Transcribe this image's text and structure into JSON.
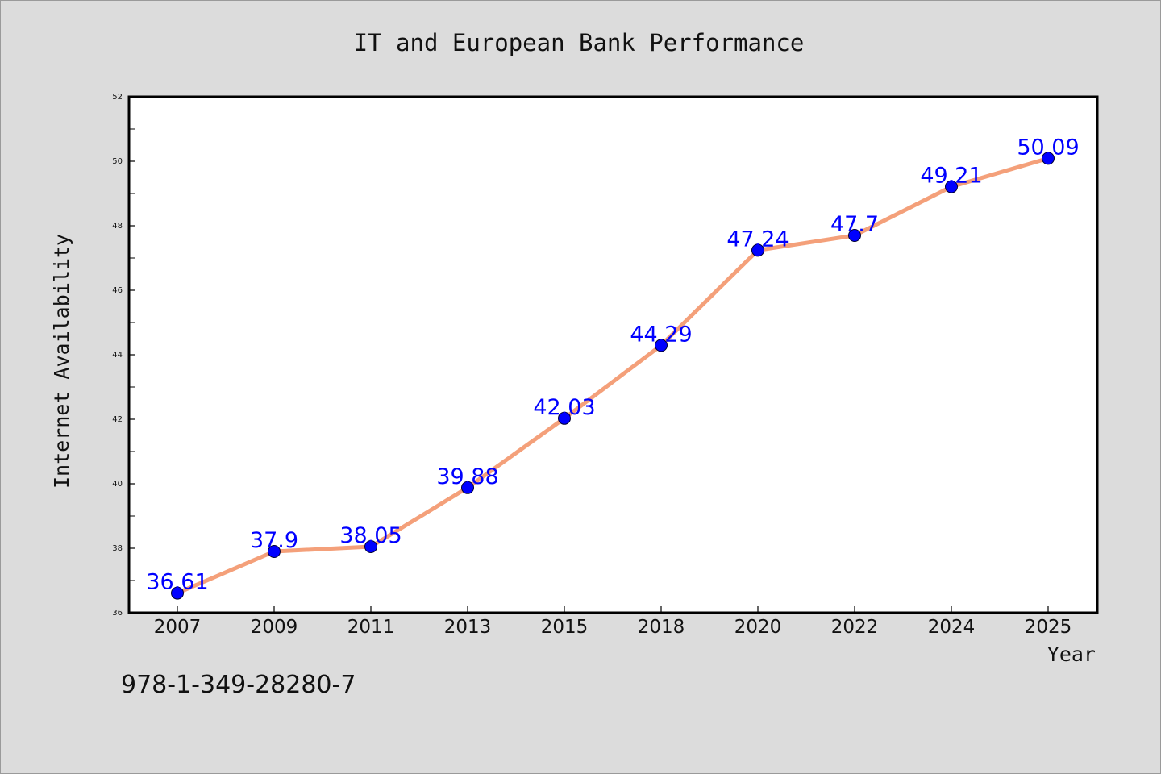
{
  "chart_data": {
    "type": "line",
    "title": "IT and European Bank Performance",
    "xlabel": "Year",
    "ylabel": "Internet Availability",
    "categories": [
      "2007",
      "2009",
      "2011",
      "2013",
      "2015",
      "2018",
      "2020",
      "2022",
      "2024",
      "2025"
    ],
    "series": [
      {
        "values": [
          36.61,
          37.9,
          38.05,
          39.88,
          42.03,
          44.29,
          47.24,
          47.7,
          49.21,
          50.09
        ],
        "labels": [
          "36.61",
          "37.9",
          "38.05",
          "39.88",
          "42.03",
          "44.29",
          "47.24",
          "47.7",
          "49.21",
          "50.09"
        ],
        "line_color": "#f4a07a",
        "marker_color": "#0000ff",
        "label_color": "#0000ff"
      }
    ],
    "ylim": [
      36,
      52
    ],
    "yticks": [
      "36",
      "38",
      "40",
      "42",
      "44",
      "46",
      "48",
      "50",
      "52"
    ],
    "grid": false,
    "legend": "none"
  },
  "footer": {
    "isbn": "978-1-349-28280-7"
  },
  "colors": {
    "background": "#dcdcdc",
    "plot_background": "#ffffff",
    "axis": "#000000"
  }
}
